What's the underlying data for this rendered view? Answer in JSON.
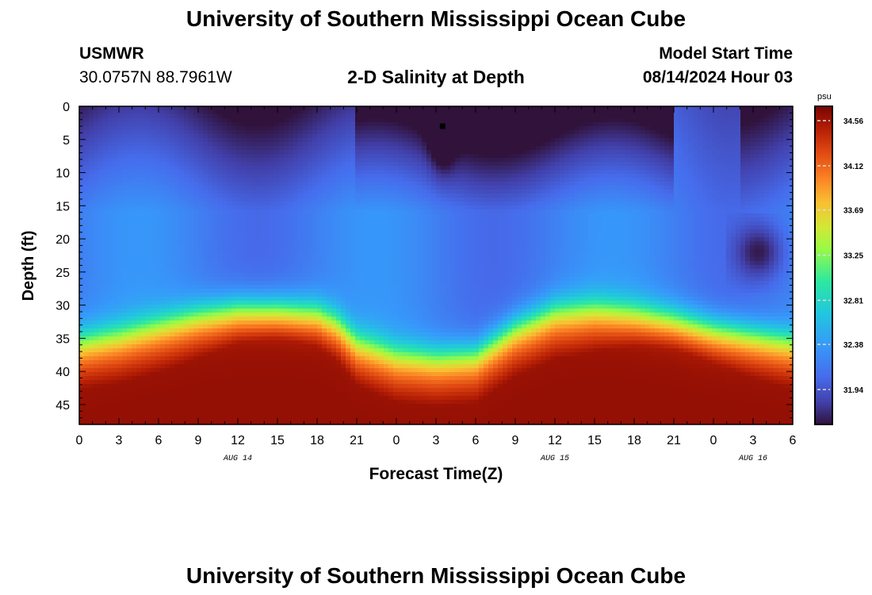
{
  "header": {
    "title": "University of Southern Mississippi Ocean Cube",
    "station": "USMWR",
    "coords": "30.0757N  88.7961W",
    "subtitle": "2-D Salinity at Depth",
    "model_label": "Model Start Time",
    "model_time": "08/14/2024 Hour 03"
  },
  "footer": {
    "title": "University of Southern Mississippi Ocean Cube"
  },
  "chart_data": {
    "type": "heatmap",
    "title": "2-D Salinity at Depth",
    "xlabel": "Forecast Time(Z)",
    "ylabel": "Depth (ft)",
    "x_tick_labels": [
      "0",
      "3",
      "6",
      "9",
      "12",
      "15",
      "18",
      "21",
      "0",
      "3",
      "6",
      "9",
      "12",
      "15",
      "18",
      "21",
      "0",
      "3",
      "6"
    ],
    "x_range_hours": [
      0,
      54
    ],
    "date_labels": [
      {
        "label": "AUG 14",
        "hour": 12
      },
      {
        "label": "AUG 15",
        "hour": 36
      },
      {
        "label": "AUG 16",
        "hour": 51
      }
    ],
    "y_ticks": [
      0,
      5,
      10,
      15,
      20,
      25,
      30,
      35,
      40,
      45
    ],
    "ylim": [
      0,
      48
    ],
    "y_inverted": true,
    "colorbar": {
      "unit": "psu",
      "min": 31.6,
      "max": 34.7,
      "labels": [
        "34.56",
        "34.12",
        "33.69",
        "33.25",
        "32.81",
        "32.38",
        "31.94"
      ]
    },
    "halocline_depth_ft": {
      "hours": [
        0,
        3,
        6,
        9,
        12,
        15,
        18,
        19.5,
        21,
        24,
        27,
        30,
        33,
        36,
        39,
        42,
        45,
        48,
        51,
        54
      ],
      "depth": [
        35,
        34,
        32.5,
        31,
        30,
        30,
        30.5,
        32,
        35,
        37,
        37.5,
        37,
        33,
        30.5,
        30,
        30.5,
        31.5,
        33,
        34,
        35
      ]
    },
    "bottom_max_salinity_psu": 34.6,
    "surface_min_salinity_psu": 31.6,
    "marker": {
      "hour": 27.5,
      "depth_ft": 3
    }
  }
}
